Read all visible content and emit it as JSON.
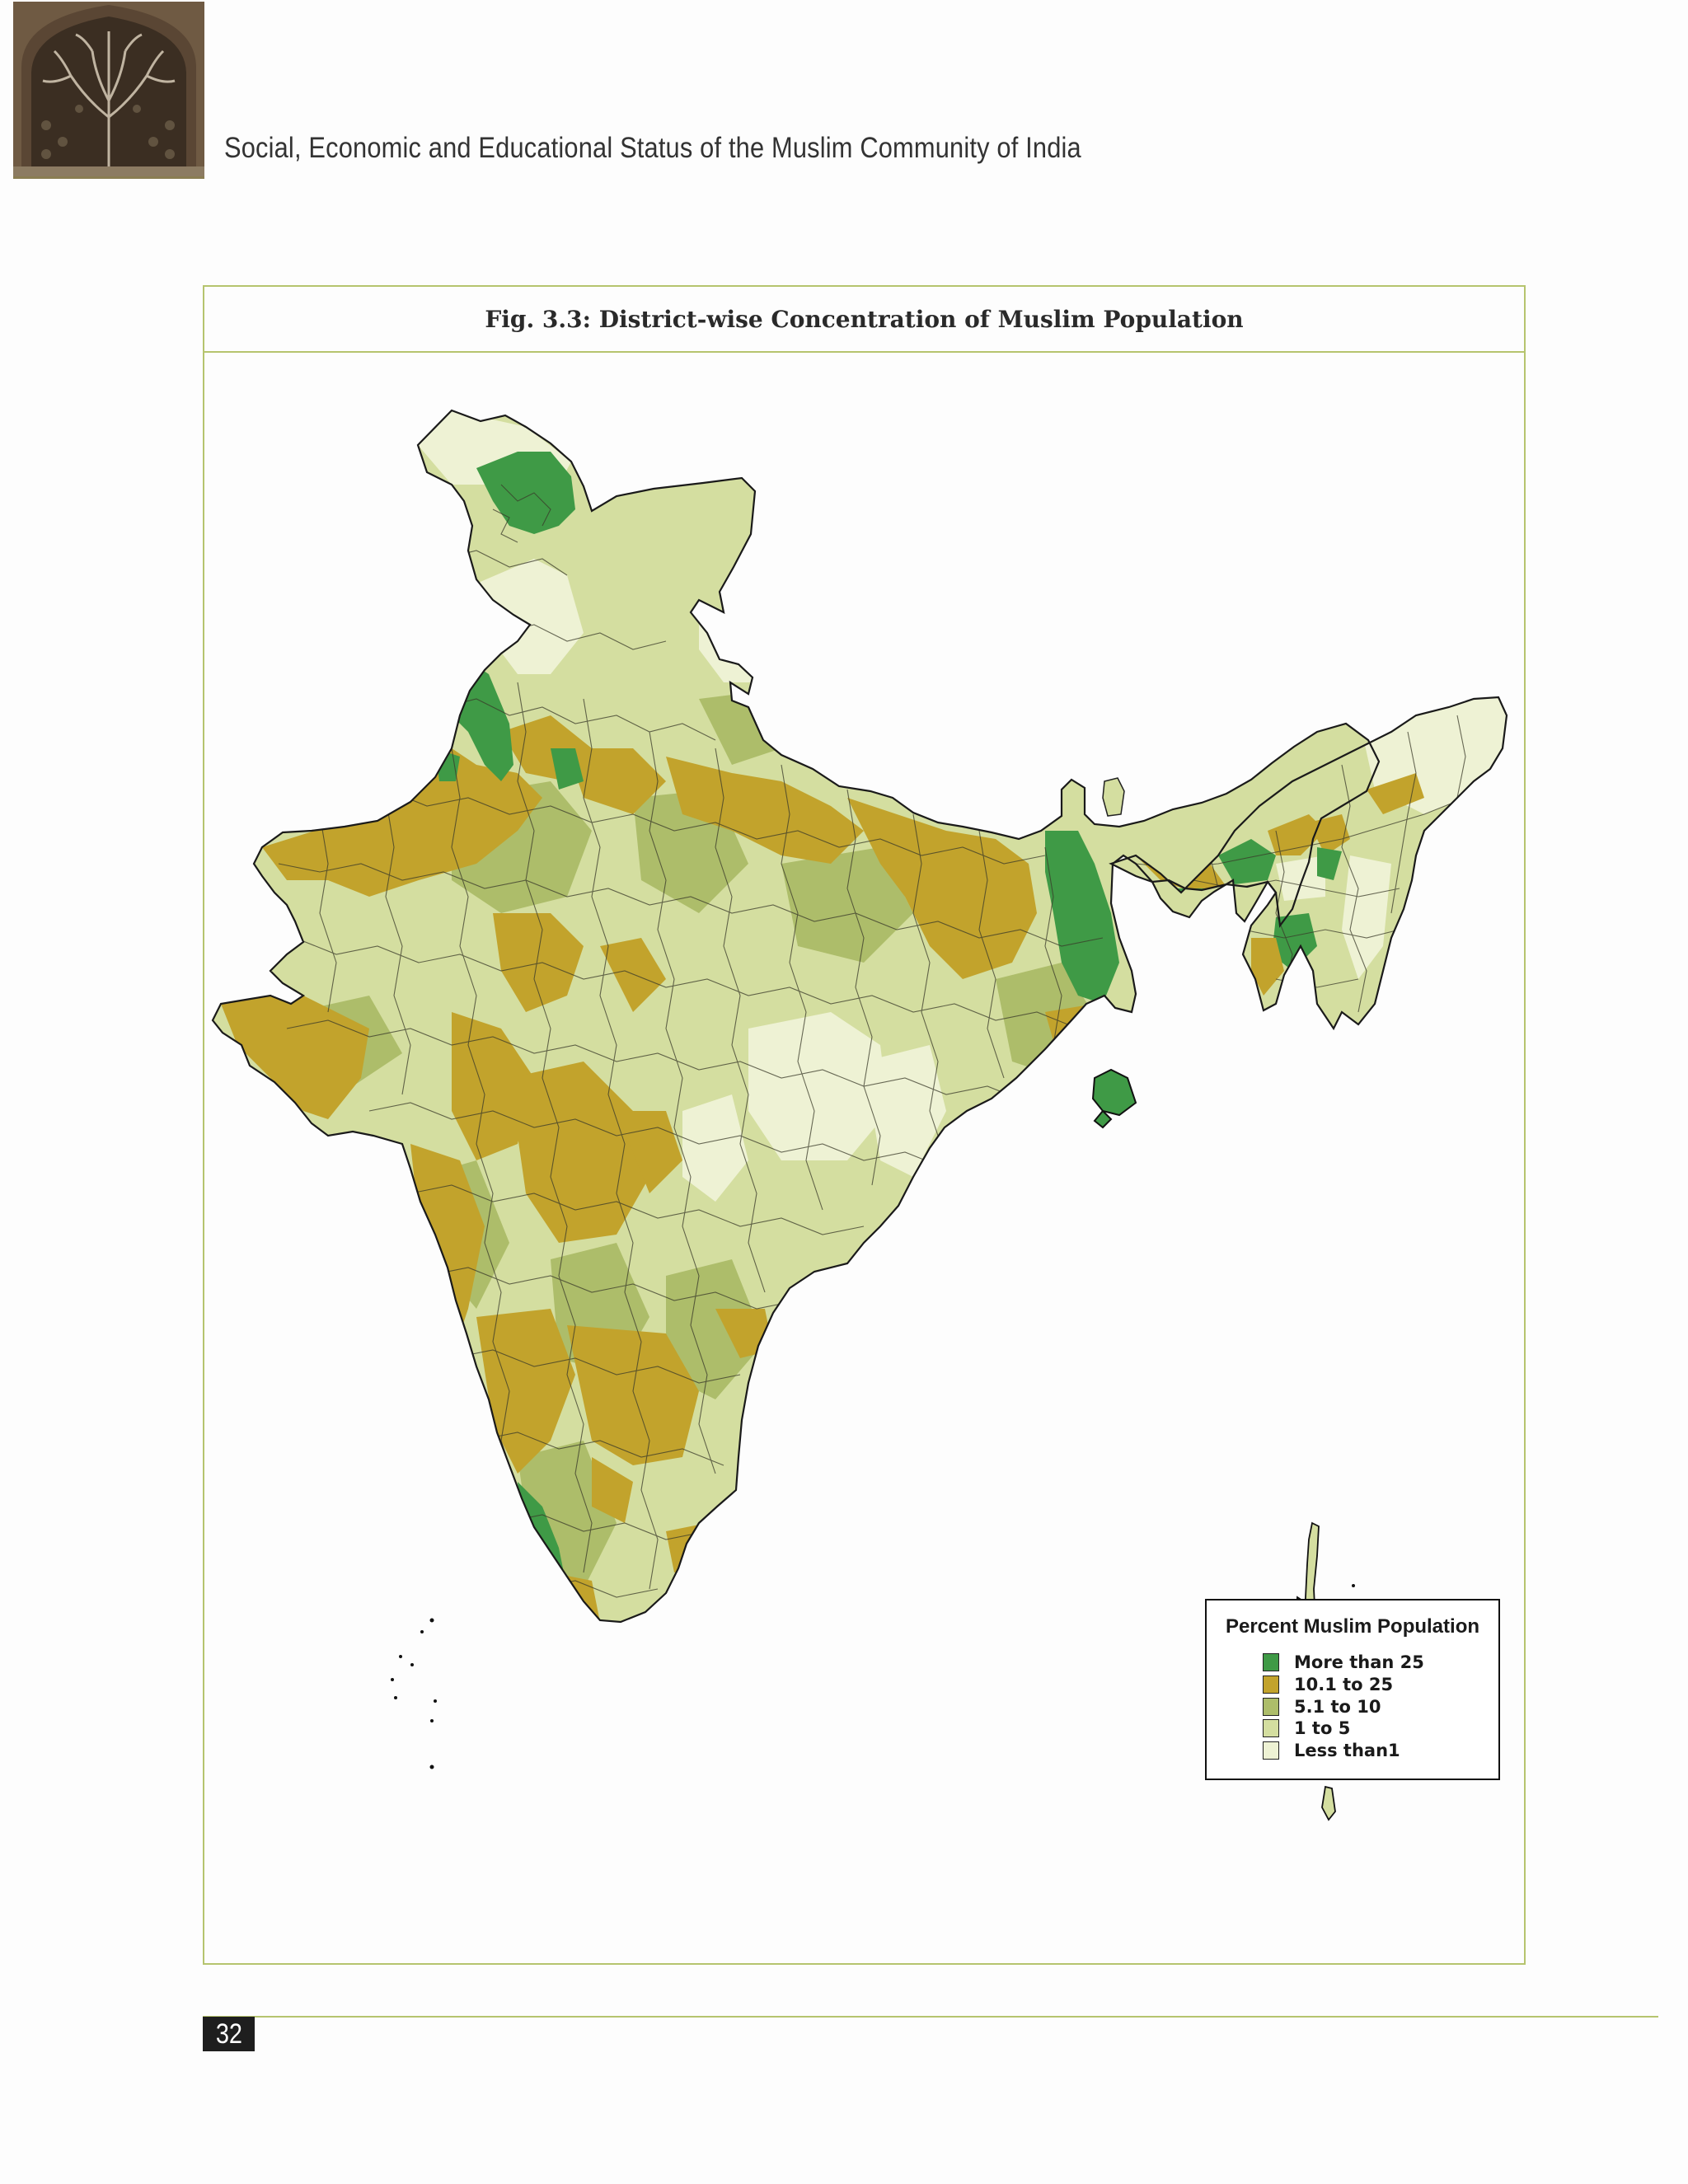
{
  "header": {
    "title": "Social, Economic and Educational Status of the Muslim Community of India",
    "image": "carved-stone-window-tree-of-life-icon"
  },
  "figure": {
    "caption": "Fig. 3.3: District-wise Concentration of Muslim Population"
  },
  "legend": {
    "title": "Percent Muslim Population",
    "items": [
      {
        "label": "More than 25",
        "color": "#3f9a46"
      },
      {
        "label": "10.1 to 25",
        "color": "#c2a32c"
      },
      {
        "label": "5.1 to 10",
        "color": "#adbd6a"
      },
      {
        "label": "1 to 5",
        "color": "#d4dea0"
      },
      {
        "label": "Less than1",
        "color": "#eef2d4"
      }
    ]
  },
  "footer": {
    "page_number": "32"
  }
}
